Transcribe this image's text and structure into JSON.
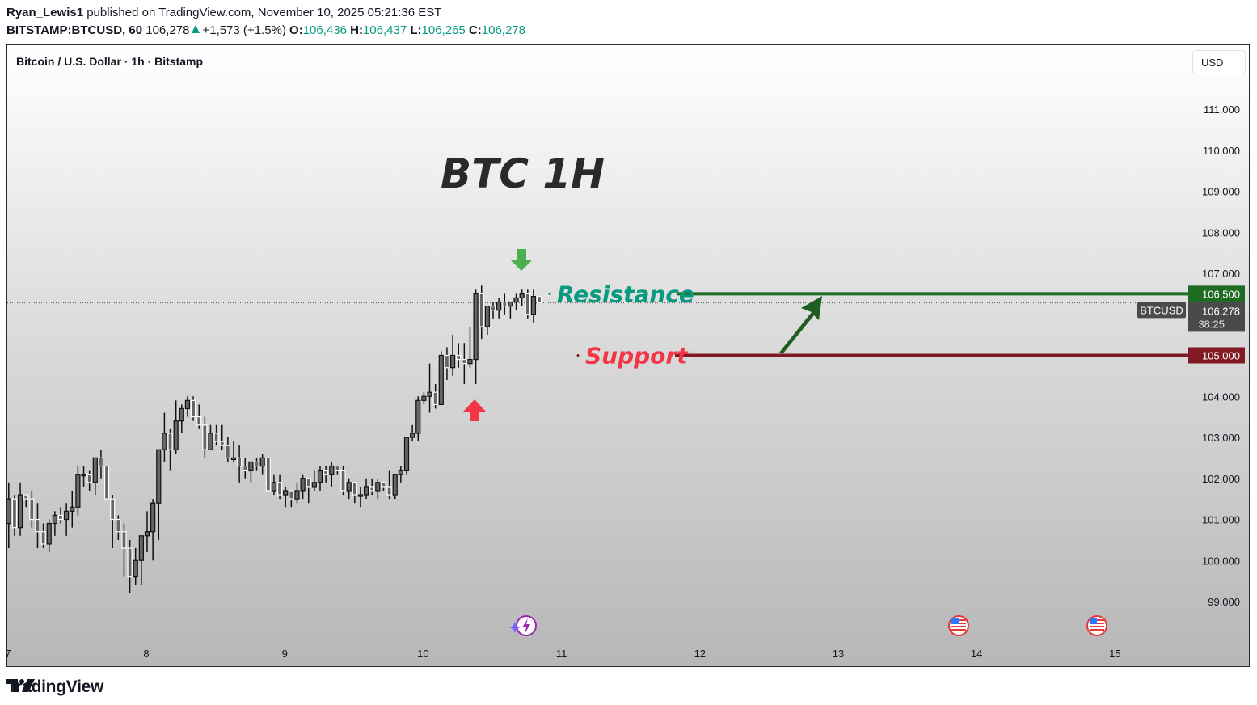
{
  "header": {
    "author": "Ryan_Lewis1",
    "published_text": " published on TradingView.com, November 10, 2025 05:21:36 EST",
    "symbol_interval": "BITSTAMP:BTCUSD, 60",
    "last_price": "106,278",
    "change": "+1,573 (+1.5%)",
    "o_label": "O:",
    "o_value": "106,436",
    "h_label": "H:",
    "h_value": "106,437",
    "l_label": "L:",
    "l_value": "106,265",
    "c_label": "C:",
    "c_value": "106,278"
  },
  "chart_header": {
    "title": "Bitcoin / U.S. Dollar · 1h · Bitstamp",
    "currency_button": "USD"
  },
  "annotations": {
    "big_title": "BTC 1H",
    "resistance_label": "Resistance",
    "support_label": "Support",
    "resistance_price": "106,500",
    "support_price": "105,000",
    "current_symbol_tag": "BTCUSD",
    "current_price": "106,278",
    "countdown": "38:25"
  },
  "colors": {
    "resistance_line": "#1e6b22",
    "resistance_text": "#089981",
    "support_line": "#801922",
    "support_text": "#f23645",
    "arrow_green": "#4caf50",
    "arrow_red": "#f23645",
    "trend_arrow": "#1e5e20",
    "price_tag_gray": "#4a4a4a"
  },
  "footer": {
    "brand": "TradingView"
  },
  "chart_data": {
    "type": "candlestick",
    "title": "BTC 1H",
    "subtitle": "Bitcoin / U.S. Dollar · 1h · Bitstamp",
    "xlabel": "",
    "ylabel": "USD",
    "ylim": [
      98400,
      112000
    ],
    "y_ticks": [
      99000,
      100000,
      101000,
      102000,
      103000,
      104000,
      105000,
      106000,
      107000,
      108000,
      109000,
      110000,
      111000
    ],
    "y_tick_labels": [
      "99,000",
      "100,000",
      "101,000",
      "102,000",
      "103,000",
      "104,000",
      "105,000",
      "106,000",
      "107,000",
      "108,000",
      "109,000",
      "110,000",
      "111,000"
    ],
    "x_tick_labels": [
      "7",
      "8",
      "9",
      "10",
      "11",
      "12",
      "13",
      "14",
      "15"
    ],
    "x_tick_days": [
      7,
      8,
      9,
      10,
      11,
      12,
      13,
      14,
      15
    ],
    "horizontal_levels": [
      {
        "name": "Resistance",
        "price": 106500
      },
      {
        "name": "Support",
        "price": 105000
      }
    ],
    "last_price": 106278,
    "grid": false,
    "candles_start_day": 7.0,
    "candle_hours": 1,
    "ohlc": [
      [
        100900,
        101900,
        100300,
        101500
      ],
      [
        101500,
        101600,
        100600,
        100800
      ],
      [
        100800,
        101900,
        100600,
        101600
      ],
      [
        101600,
        101600,
        101300,
        101500
      ],
      [
        101500,
        101700,
        100800,
        101000
      ],
      [
        101000,
        101400,
        100300,
        100700
      ],
      [
        100700,
        100900,
        100300,
        100400
      ],
      [
        100400,
        101000,
        100200,
        100900
      ],
      [
        100900,
        101200,
        100600,
        101100
      ],
      [
        101100,
        101300,
        100900,
        101000
      ],
      [
        101000,
        101400,
        100600,
        101200
      ],
      [
        101200,
        101700,
        100800,
        101300
      ],
      [
        101300,
        102300,
        101100,
        102100
      ],
      [
        102100,
        102300,
        101800,
        102100
      ],
      [
        102100,
        102200,
        101700,
        101900
      ],
      [
        101900,
        102500,
        101600,
        102500
      ],
      [
        102500,
        102700,
        102000,
        102300
      ],
      [
        102300,
        102300,
        101800,
        101500
      ],
      [
        101500,
        101600,
        100300,
        101000
      ],
      [
        101000,
        101100,
        100500,
        100700
      ],
      [
        100700,
        100900,
        99600,
        100300
      ],
      [
        100300,
        100500,
        99200,
        99600
      ],
      [
        99600,
        100300,
        99400,
        100000
      ],
      [
        100000,
        100400,
        99400,
        100600
      ],
      [
        100600,
        101200,
        100200,
        100700
      ],
      [
        100700,
        101500,
        100000,
        101400
      ],
      [
        101400,
        102700,
        100500,
        102700
      ],
      [
        102700,
        103600,
        102400,
        103100
      ],
      [
        103100,
        103200,
        102200,
        102700
      ],
      [
        102700,
        103900,
        102600,
        103400
      ],
      [
        103400,
        103800,
        103100,
        103700
      ],
      [
        103700,
        104000,
        103500,
        103900
      ],
      [
        103900,
        104000,
        103400,
        103500
      ],
      [
        103500,
        103800,
        103200,
        103300
      ],
      [
        103300,
        103500,
        102500,
        102700
      ],
      [
        102700,
        103300,
        102800,
        103100
      ],
      [
        103100,
        103300,
        102800,
        102900
      ],
      [
        102900,
        103300,
        102700,
        102800
      ],
      [
        102800,
        103000,
        102400,
        102500
      ],
      [
        102500,
        102900,
        102400,
        102500
      ],
      [
        102500,
        102800,
        101900,
        102300
      ],
      [
        102300,
        102500,
        102000,
        102200
      ],
      [
        102200,
        102400,
        101900,
        102400
      ],
      [
        102400,
        102500,
        102200,
        102300
      ],
      [
        102300,
        102600,
        102100,
        102500
      ],
      [
        102500,
        102500,
        101900,
        101700
      ],
      [
        101700,
        102100,
        101600,
        101900
      ],
      [
        101900,
        102100,
        101500,
        101600
      ],
      [
        101600,
        101800,
        101300,
        101700
      ],
      [
        101700,
        101700,
        101300,
        101500
      ],
      [
        101500,
        101900,
        101400,
        101700
      ],
      [
        101700,
        102100,
        101500,
        102000
      ],
      [
        102000,
        102000,
        101400,
        101800
      ],
      [
        101800,
        102200,
        101700,
        101900
      ],
      [
        101900,
        102300,
        101700,
        102200
      ],
      [
        102200,
        102300,
        101900,
        102100
      ],
      [
        102100,
        102400,
        101800,
        102300
      ],
      [
        102300,
        102300,
        102100,
        102200
      ],
      [
        102200,
        102300,
        101600,
        101700
      ],
      [
        101700,
        102000,
        101500,
        101900
      ],
      [
        101900,
        101900,
        101400,
        101600
      ],
      [
        101600,
        101800,
        101300,
        101600
      ],
      [
        101600,
        102000,
        101500,
        101800
      ],
      [
        101800,
        102000,
        101600,
        101700
      ],
      [
        101700,
        102000,
        101500,
        101900
      ],
      [
        101900,
        101900,
        101700,
        101800
      ],
      [
        101800,
        102200,
        101500,
        101600
      ],
      [
        101600,
        101900,
        101500,
        102100
      ],
      [
        102100,
        102300,
        101900,
        102200
      ],
      [
        102200,
        103000,
        102100,
        103000
      ],
      [
        103000,
        103300,
        102900,
        103100
      ],
      [
        103100,
        104000,
        102900,
        103900
      ],
      [
        103900,
        104100,
        103800,
        104000
      ],
      [
        104000,
        104800,
        103600,
        104100
      ],
      [
        104100,
        104300,
        103700,
        103800
      ],
      [
        103800,
        105100,
        103800,
        105000
      ],
      [
        105000,
        105200,
        104400,
        104700
      ],
      [
        104700,
        105500,
        104500,
        105000
      ],
      [
        105000,
        105300,
        104700,
        104900
      ],
      [
        104900,
        105300,
        104300,
        104800
      ],
      [
        104800,
        105700,
        104700,
        104900
      ],
      [
        104900,
        106600,
        104300,
        106500
      ],
      [
        106500,
        106700,
        105400,
        105700
      ],
      [
        105700,
        106200,
        105500,
        106200
      ],
      [
        106200,
        106300,
        105900,
        106100
      ],
      [
        106100,
        106400,
        105900,
        106300
      ],
      [
        106300,
        106500,
        106000,
        106200
      ],
      [
        106200,
        106300,
        105900,
        106300
      ],
      [
        106300,
        106500,
        106100,
        106400
      ],
      [
        106400,
        106600,
        106200,
        106500
      ],
      [
        106500,
        106600,
        105900,
        106000
      ],
      [
        106000,
        106600,
        105800,
        106436
      ],
      [
        106436,
        106437,
        106265,
        106278
      ]
    ]
  }
}
